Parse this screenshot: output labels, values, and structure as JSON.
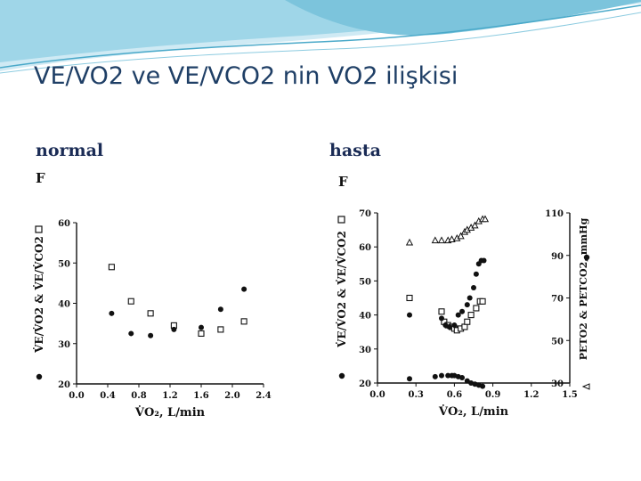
{
  "slide": {
    "title": "VE/VO2 ve VE/VCO2 nin VO2 ilişkisi",
    "caption_left": "normal",
    "caption_right": "hasta"
  },
  "colors": {
    "title": "#1f3f66",
    "caption": "#1a2b55",
    "wave": "#7cc4dc",
    "ink": "#111111"
  },
  "chart_data": [
    {
      "type": "scatter",
      "panel_label": "F",
      "title": "",
      "xlabel": "V̇O₂, L/min",
      "ylabel": "V̇E/V̇O2 & V̇E/V̇CO2",
      "xlim": [
        0.0,
        2.4
      ],
      "ylim": [
        20,
        60
      ],
      "x_ticks": [
        "0.0",
        "0.4",
        "0.8",
        "1.2",
        "1.6",
        "2.0",
        "2.4"
      ],
      "y_ticks": [
        "20",
        "30",
        "40",
        "50",
        "60"
      ],
      "grid": false,
      "series": [
        {
          "marker": "open-square",
          "points": [
            [
              0.45,
              49
            ],
            [
              0.7,
              40.5
            ],
            [
              0.95,
              37.5
            ],
            [
              1.25,
              34.5
            ],
            [
              1.6,
              32.5
            ],
            [
              1.85,
              33.5
            ],
            [
              2.15,
              35.5
            ]
          ]
        },
        {
          "marker": "filled-circle",
          "points": [
            [
              0.45,
              37.5
            ],
            [
              0.7,
              32.5
            ],
            [
              0.95,
              32
            ],
            [
              1.25,
              33.5
            ],
            [
              1.6,
              34
            ],
            [
              1.85,
              38.5
            ],
            [
              2.15,
              43.5
            ]
          ]
        }
      ]
    },
    {
      "type": "scatter",
      "panel_label": "F",
      "title": "",
      "xlabel": "V̇O₂, L/min",
      "ylabel": "V̇E/V̇O2 & V̇E/V̇CO2",
      "ylabel_right": "PETO2 & PETCO2, mmHg",
      "xlim": [
        0.0,
        1.5
      ],
      "ylim": [
        20,
        70
      ],
      "ylim_right": [
        30,
        110
      ],
      "x_ticks": [
        "0.0",
        "0.3",
        "0.6",
        "0.9",
        "1.2",
        "1.5"
      ],
      "y_ticks": [
        "20",
        "30",
        "40",
        "50",
        "60",
        "70"
      ],
      "y_ticks_right": [
        "30",
        "50",
        "70",
        "90",
        "110"
      ],
      "grid": false,
      "series": [
        {
          "marker": "open-square",
          "axis": "left",
          "points": [
            [
              0.25,
              45
            ],
            [
              0.5,
              41
            ],
            [
              0.52,
              38
            ],
            [
              0.55,
              37
            ],
            [
              0.58,
              36.5
            ],
            [
              0.6,
              36
            ],
            [
              0.62,
              35.5
            ],
            [
              0.65,
              36
            ],
            [
              0.68,
              36.5
            ],
            [
              0.7,
              38
            ],
            [
              0.73,
              40
            ],
            [
              0.77,
              42
            ],
            [
              0.8,
              44
            ],
            [
              0.82,
              44
            ]
          ]
        },
        {
          "marker": "filled-circle",
          "axis": "left",
          "points": [
            [
              0.25,
              40
            ],
            [
              0.5,
              39
            ],
            [
              0.53,
              37
            ],
            [
              0.56,
              36.5
            ],
            [
              0.6,
              37
            ],
            [
              0.63,
              40
            ],
            [
              0.66,
              41
            ],
            [
              0.7,
              43
            ],
            [
              0.72,
              45
            ],
            [
              0.75,
              48
            ],
            [
              0.77,
              52
            ],
            [
              0.79,
              55
            ],
            [
              0.81,
              56
            ],
            [
              0.83,
              56
            ]
          ]
        },
        {
          "marker": "open-triangle",
          "axis": "right",
          "points": [
            [
              0.25,
              96
            ],
            [
              0.45,
              97
            ],
            [
              0.5,
              97
            ],
            [
              0.55,
              97
            ],
            [
              0.58,
              97.5
            ],
            [
              0.62,
              98
            ],
            [
              0.65,
              99
            ],
            [
              0.68,
              101
            ],
            [
              0.7,
              102
            ],
            [
              0.73,
              103
            ],
            [
              0.76,
              104
            ],
            [
              0.79,
              106
            ],
            [
              0.82,
              107
            ],
            [
              0.84,
              107
            ]
          ]
        },
        {
          "marker": "filled-circle",
          "axis": "right",
          "points": [
            [
              0.25,
              32
            ],
            [
              0.45,
              33
            ],
            [
              0.5,
              33.5
            ],
            [
              0.55,
              33.5
            ],
            [
              0.58,
              33.5
            ],
            [
              0.6,
              33.5
            ],
            [
              0.63,
              33
            ],
            [
              0.66,
              32.5
            ],
            [
              0.7,
              31
            ],
            [
              0.73,
              30
            ],
            [
              0.76,
              29.5
            ],
            [
              0.79,
              29
            ],
            [
              0.82,
              28.5
            ]
          ]
        }
      ]
    }
  ]
}
